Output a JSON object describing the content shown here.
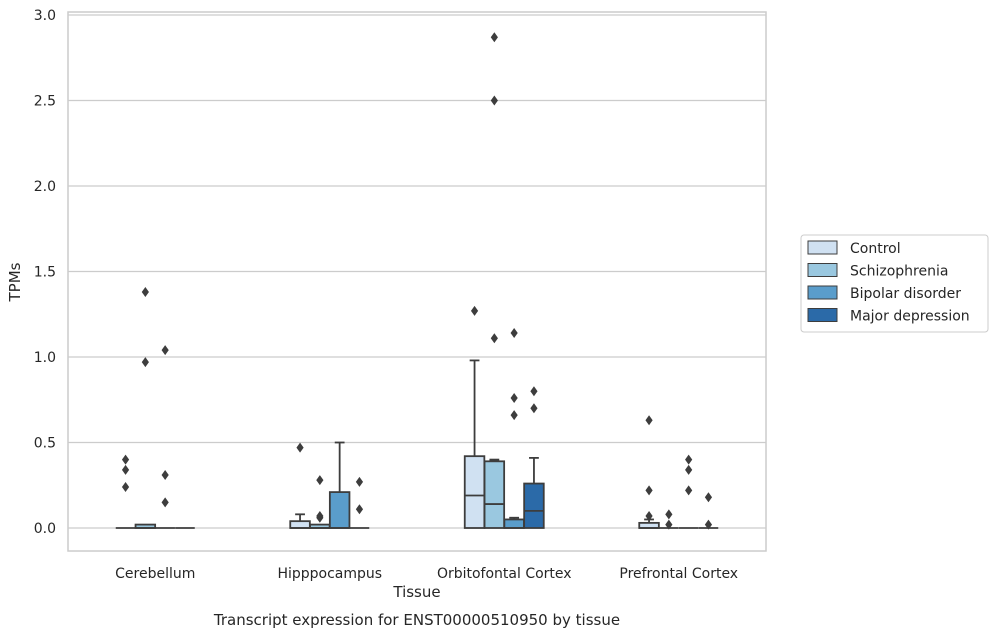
{
  "chart_data": {
    "type": "box",
    "xlabel": "Tissue",
    "ylabel": "TPMs",
    "caption": "Transcript expression for ENST00000510950 by tissue",
    "ylim": [
      -0.14,
      3.02
    ],
    "yticks": [
      "0.0",
      "0.5",
      "1.0",
      "1.5",
      "2.0",
      "2.5",
      "3.0"
    ],
    "grid": "horizontal",
    "legend_position": "right",
    "categories": [
      "Cerebellum",
      "Hipppocampus",
      "Orbitofontal Cortex",
      "Prefrontal Cortex"
    ],
    "series": [
      {
        "name": "Control",
        "color": "#d0e1f2",
        "boxes": [
          {
            "q1": 0,
            "median": 0,
            "q3": 0,
            "whislo": 0,
            "whishi": 0,
            "fliers": [
              0.24,
              0.34,
              0.4
            ]
          },
          {
            "q1": 0,
            "median": 0,
            "q3": 0.04,
            "whislo": 0,
            "whishi": 0.08,
            "fliers": [
              0.47
            ]
          },
          {
            "q1": 0,
            "median": 0.19,
            "q3": 0.42,
            "whislo": 0,
            "whishi": 0.98,
            "fliers": [
              1.27
            ]
          },
          {
            "q1": 0,
            "median": 0,
            "q3": 0.03,
            "whislo": 0,
            "whishi": 0.05,
            "fliers": [
              0.07,
              0.22,
              0.63
            ]
          }
        ]
      },
      {
        "name": "Schizophrenia",
        "color": "#9ac8e0",
        "boxes": [
          {
            "q1": 0,
            "median": 0,
            "q3": 0.02,
            "whislo": 0,
            "whishi": 0.02,
            "fliers": [
              0.97,
              1.38
            ]
          },
          {
            "q1": 0,
            "median": 0,
            "q3": 0.02,
            "whislo": 0,
            "whishi": 0.02,
            "fliers": [
              0.06,
              0.07,
              0.28
            ]
          },
          {
            "q1": 0,
            "median": 0.14,
            "q3": 0.39,
            "whislo": 0,
            "whishi": 0.4,
            "fliers": [
              1.11,
              2.5,
              2.87
            ]
          },
          {
            "q1": 0,
            "median": 0,
            "q3": 0,
            "whislo": 0,
            "whishi": 0,
            "fliers": [
              0.02,
              0.08
            ]
          }
        ]
      },
      {
        "name": "Bipolar disorder",
        "color": "#5a9dcb",
        "boxes": [
          {
            "q1": 0,
            "median": 0,
            "q3": 0,
            "whislo": 0,
            "whishi": 0,
            "fliers": [
              0.15,
              0.31,
              1.04
            ]
          },
          {
            "q1": 0,
            "median": 0,
            "q3": 0.21,
            "whislo": 0,
            "whishi": 0.5,
            "fliers": []
          },
          {
            "q1": 0,
            "median": 0,
            "q3": 0.05,
            "whislo": 0,
            "whishi": 0.06,
            "fliers": [
              0.66,
              0.76,
              1.14
            ]
          },
          {
            "q1": 0,
            "median": 0,
            "q3": 0,
            "whislo": 0,
            "whishi": 0,
            "fliers": [
              0.22,
              0.34,
              0.4
            ]
          }
        ]
      },
      {
        "name": "Major depression",
        "color": "#2b6aa8",
        "boxes": [
          {
            "q1": 0,
            "median": 0,
            "q3": 0,
            "whislo": 0,
            "whishi": 0,
            "fliers": []
          },
          {
            "q1": 0,
            "median": 0,
            "q3": 0,
            "whislo": 0,
            "whishi": 0,
            "fliers": [
              0.11,
              0.27
            ]
          },
          {
            "q1": 0,
            "median": 0.1,
            "q3": 0.26,
            "whislo": 0,
            "whishi": 0.41,
            "fliers": [
              0.7,
              0.8
            ]
          },
          {
            "q1": 0,
            "median": 0,
            "q3": 0,
            "whislo": 0,
            "whishi": 0,
            "fliers": [
              0.02,
              0.18
            ]
          }
        ]
      }
    ]
  }
}
